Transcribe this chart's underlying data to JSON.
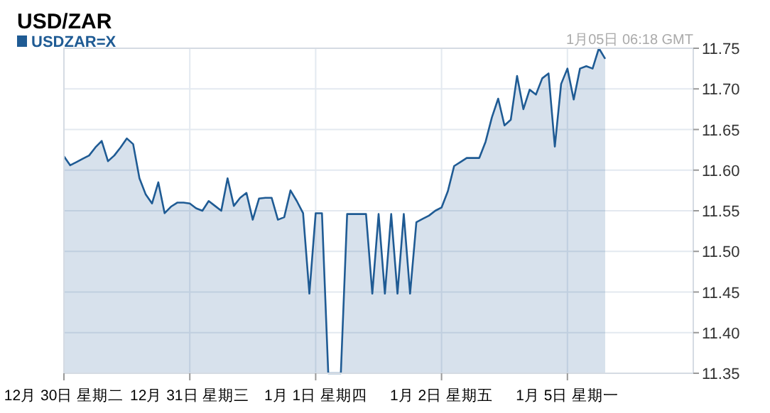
{
  "chart_data": {
    "type": "area",
    "title": "USD/ZAR",
    "annotations": [
      "1月05日 06:18 GMT"
    ],
    "legend": "top left",
    "grid": true,
    "categories": [
      "12月 30日 星期二",
      null,
      null,
      null,
      null,
      null,
      null,
      null,
      null,
      null,
      null,
      null,
      null,
      null,
      null,
      null,
      null,
      null,
      null,
      null,
      "12月 31日 星期三",
      null,
      null,
      null,
      null,
      null,
      null,
      null,
      null,
      null,
      null,
      null,
      null,
      null,
      null,
      null,
      null,
      null,
      null,
      null,
      "1月  1日 星期四",
      null,
      null,
      null,
      null,
      null,
      null,
      null,
      null,
      null,
      null,
      null,
      null,
      null,
      null,
      null,
      null,
      null,
      null,
      null,
      "1月  2日 星期五",
      null,
      null,
      null,
      null,
      null,
      null,
      null,
      null,
      null,
      null,
      null,
      null,
      null,
      null,
      null,
      null,
      null,
      null,
      null,
      "1月  5日 星期一",
      null,
      null,
      null,
      null,
      null,
      null,
      null,
      null,
      null,
      null,
      null,
      null,
      null,
      null,
      null,
      null,
      null,
      null,
      null
    ],
    "ylim": [
      11.35,
      11.75
    ],
    "yticks": [
      {
        "value": 11.35,
        "label": "11.35"
      },
      {
        "value": 11.4,
        "label": "11.40"
      },
      {
        "value": 11.45,
        "label": "11.45"
      },
      {
        "value": 11.5,
        "label": "11.50"
      },
      {
        "value": 11.55,
        "label": "11.55"
      },
      {
        "value": 11.6,
        "label": "11.60"
      },
      {
        "value": 11.65,
        "label": "11.65"
      },
      {
        "value": 11.7,
        "label": "11.70"
      },
      {
        "value": 11.75,
        "label": "11.75"
      }
    ],
    "series": [
      {
        "name": "USDZAR=X",
        "color": "#1f5b94",
        "values": [
          11.617,
          11.606,
          11.61,
          11.614,
          11.618,
          11.628,
          11.636,
          11.611,
          11.618,
          11.628,
          11.639,
          11.632,
          11.59,
          11.57,
          11.559,
          11.585,
          11.547,
          11.555,
          11.56,
          11.56,
          11.559,
          11.553,
          11.55,
          11.562,
          11.556,
          11.55,
          11.59,
          11.556,
          11.566,
          11.572,
          11.539,
          11.565,
          11.566,
          11.566,
          11.539,
          11.542,
          11.575,
          11.562,
          11.547,
          11.448,
          11.547,
          11.547,
          11.35,
          11.35,
          11.35,
          11.546,
          11.546,
          11.546,
          11.546,
          11.448,
          11.546,
          11.448,
          11.546,
          11.448,
          11.546,
          11.448,
          11.536,
          11.54,
          11.544,
          11.55,
          11.554,
          11.574,
          11.605,
          11.61,
          11.615,
          11.615,
          11.615,
          11.635,
          11.665,
          11.688,
          11.655,
          11.662,
          11.716,
          11.675,
          11.699,
          11.693,
          11.713,
          11.719,
          11.629,
          11.706,
          11.725,
          11.687,
          11.725,
          11.728,
          11.725,
          11.75,
          11.737,
          null,
          null,
          null,
          null,
          null,
          null,
          null,
          null,
          null,
          null,
          null,
          null,
          null
        ]
      }
    ]
  }
}
